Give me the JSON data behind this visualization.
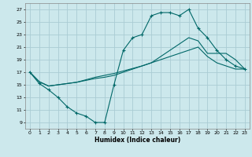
{
  "xlabel": "Humidex (Indice chaleur)",
  "bg_color": "#cce8ec",
  "grid_color": "#aaccd4",
  "line_color": "#006868",
  "xlim": [
    -0.5,
    23.5
  ],
  "ylim": [
    8.0,
    28.0
  ],
  "yticks": [
    9,
    11,
    13,
    15,
    17,
    19,
    21,
    23,
    25,
    27
  ],
  "xticks": [
    0,
    1,
    2,
    3,
    4,
    5,
    6,
    7,
    8,
    9,
    10,
    11,
    12,
    13,
    14,
    15,
    16,
    17,
    18,
    19,
    20,
    21,
    22,
    23
  ],
  "line1_x": [
    0,
    1,
    2,
    3,
    4,
    5,
    6,
    7,
    8,
    9,
    10,
    11,
    12,
    13,
    14,
    15,
    16,
    17,
    18,
    19,
    20,
    21,
    22,
    23
  ],
  "line1_y": [
    17.0,
    15.2,
    14.2,
    13.0,
    11.5,
    10.5,
    10.0,
    9.0,
    9.0,
    15.0,
    20.5,
    22.5,
    23.0,
    26.0,
    26.5,
    26.5,
    26.0,
    27.0,
    24.0,
    22.5,
    20.5,
    19.0,
    18.0,
    17.5
  ],
  "line2_x": [
    0,
    1,
    2,
    3,
    4,
    5,
    6,
    7,
    8,
    9,
    10,
    11,
    12,
    13,
    14,
    15,
    16,
    17,
    18,
    19,
    20,
    21,
    22,
    23
  ],
  "line2_y": [
    17.0,
    15.5,
    14.8,
    15.0,
    15.2,
    15.4,
    15.7,
    16.0,
    16.2,
    16.5,
    17.0,
    17.5,
    18.0,
    18.5,
    19.5,
    20.5,
    21.5,
    22.5,
    22.0,
    20.0,
    20.0,
    20.0,
    19.0,
    17.5
  ],
  "line3_x": [
    0,
    1,
    2,
    3,
    4,
    5,
    6,
    7,
    8,
    9,
    10,
    11,
    12,
    13,
    14,
    15,
    16,
    17,
    18,
    19,
    20,
    21,
    22,
    23
  ],
  "line3_y": [
    17.0,
    15.5,
    14.8,
    15.0,
    15.2,
    15.4,
    15.8,
    16.2,
    16.5,
    16.8,
    17.2,
    17.6,
    18.0,
    18.5,
    19.0,
    19.5,
    20.0,
    20.5,
    21.0,
    19.5,
    18.5,
    18.0,
    17.5,
    17.5
  ]
}
